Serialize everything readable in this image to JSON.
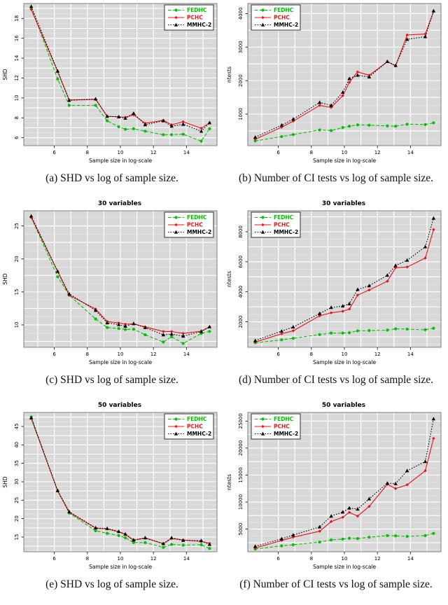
{
  "styles": {
    "panel_fill": "#d8d8d8",
    "grid_color": "#ffffff",
    "axis_border": "#666666",
    "series": {
      "FEDHC": {
        "color": "#00c000",
        "dash": "4.5,2.5",
        "marker": "circle"
      },
      "PCHC": {
        "color": "#ee1111",
        "dash": "",
        "marker": "diamond"
      },
      "MMHC-2": {
        "color": "#000000",
        "dash": "1.6,2",
        "marker": "triangle"
      }
    }
  },
  "chart_data": [
    {
      "type": "line",
      "title": "",
      "caption": "(a) SHD vs log of sample size.",
      "xlabel": "Sample size in log-scale",
      "ylabel": "SHD",
      "x": [
        4.6,
        6.2,
        6.9,
        8.5,
        9.2,
        9.9,
        10.3,
        10.8,
        11.5,
        12.6,
        13.1,
        13.8,
        14.9,
        15.4
      ],
      "xlim": [
        4.15,
        15.85
      ],
      "xticks": [
        6,
        8,
        10,
        12,
        14
      ],
      "ylim": [
        5.2,
        19.5
      ],
      "yticks": [
        6,
        8,
        10,
        12,
        14,
        16,
        18
      ],
      "legend": "topright",
      "grid": true,
      "series": [
        {
          "name": "FEDHC",
          "values": [
            19.1,
            11.9,
            9.25,
            9.25,
            7.7,
            7.1,
            6.85,
            6.9,
            6.65,
            6.3,
            6.3,
            6.35,
            5.65,
            6.9
          ]
        },
        {
          "name": "PCHC",
          "values": [
            18.9,
            12.65,
            9.8,
            9.85,
            8.15,
            8.1,
            8.05,
            8.3,
            7.45,
            7.75,
            7.3,
            7.6,
            6.95,
            7.5
          ]
        },
        {
          "name": "MMHC-2",
          "values": [
            19.2,
            12.7,
            9.75,
            9.9,
            8.15,
            8.1,
            7.95,
            8.45,
            7.3,
            7.7,
            7.15,
            7.35,
            6.65,
            7.5
          ]
        }
      ]
    },
    {
      "type": "line",
      "title": "",
      "caption": "(b) Number of CI tests vs log of sample size.",
      "xlabel": "Sample size in log-scale",
      "ylabel": "ntests",
      "x": [
        4.6,
        6.2,
        6.9,
        8.5,
        9.2,
        9.9,
        10.3,
        10.8,
        11.5,
        12.6,
        13.1,
        13.8,
        14.9,
        15.4
      ],
      "xlim": [
        4.15,
        15.85
      ],
      "xticks": [
        6,
        8,
        10,
        12,
        14
      ],
      "ylim": [
        60,
        4300
      ],
      "yticks": [
        1000,
        2000,
        3000,
        4000
      ],
      "legend": "topleft",
      "grid": true,
      "series": [
        {
          "name": "FEDHC",
          "values": [
            200,
            330,
            390,
            530,
            510,
            600,
            640,
            680,
            670,
            650,
            640,
            700,
            690,
            740
          ]
        },
        {
          "name": "PCHC",
          "values": [
            250,
            610,
            790,
            1260,
            1200,
            1550,
            1950,
            2260,
            2160,
            2560,
            2440,
            3360,
            3390,
            4060
          ]
        },
        {
          "name": "MMHC-2",
          "values": [
            310,
            670,
            850,
            1350,
            1260,
            1650,
            2060,
            2160,
            2110,
            2570,
            2450,
            3230,
            3310,
            4080
          ]
        }
      ]
    },
    {
      "type": "line",
      "title": "30 variables",
      "caption": "(c) SHD vs log of sample size.",
      "xlabel": "Sample size in log-scale",
      "ylabel": "SHD",
      "x": [
        4.6,
        6.2,
        6.9,
        8.5,
        9.2,
        9.9,
        10.3,
        10.8,
        11.5,
        12.6,
        13.1,
        13.8,
        14.9,
        15.4
      ],
      "xlim": [
        4.15,
        15.85
      ],
      "xticks": [
        6,
        8,
        10,
        12,
        14
      ],
      "ylim": [
        6.6,
        27.3
      ],
      "yticks": [
        10,
        15,
        20,
        25
      ],
      "legend": "topright",
      "grid": true,
      "series": [
        {
          "name": "FEDHC",
          "values": [
            26.3,
            17.3,
            14.5,
            10.9,
            9.6,
            9.45,
            9.3,
            9.35,
            8.5,
            7.4,
            8.2,
            7.2,
            8.7,
            9.0
          ]
        },
        {
          "name": "PCHC",
          "values": [
            26.3,
            18.1,
            14.5,
            12.4,
            10.5,
            10.3,
            10.1,
            10.15,
            9.7,
            9.0,
            9.0,
            8.7,
            9.05,
            9.7
          ]
        },
        {
          "name": "MMHC-2",
          "values": [
            26.5,
            18.1,
            14.7,
            12.2,
            10.3,
            10.05,
            9.8,
            10.2,
            9.6,
            8.5,
            8.6,
            8.3,
            9.0,
            9.7
          ]
        }
      ]
    },
    {
      "type": "line",
      "title": "30 variables",
      "caption": "(d) Number of CI tests vs log of sample size.",
      "xlabel": "Sample size in log-scale",
      "ylabel": "ntests",
      "x": [
        4.6,
        6.2,
        6.9,
        8.5,
        9.2,
        9.9,
        10.3,
        10.8,
        11.5,
        12.6,
        13.1,
        13.8,
        14.9,
        15.4
      ],
      "xlim": [
        4.15,
        15.85
      ],
      "xticks": [
        6,
        8,
        10,
        12,
        14
      ],
      "ylim": [
        300,
        9400
      ],
      "yticks": [
        2000,
        4000,
        6000,
        8000
      ],
      "legend": "topleft",
      "grid": true,
      "series": [
        {
          "name": "FEDHC",
          "values": [
            600,
            800,
            900,
            1150,
            1250,
            1250,
            1270,
            1400,
            1420,
            1450,
            1530,
            1510,
            1470,
            1570
          ]
        },
        {
          "name": "PCHC",
          "values": [
            650,
            1200,
            1400,
            2400,
            2600,
            2700,
            2850,
            3780,
            4120,
            4700,
            5600,
            5650,
            6250,
            8150
          ]
        },
        {
          "name": "MMHC-2",
          "values": [
            750,
            1380,
            1650,
            2550,
            2950,
            3050,
            3200,
            4150,
            4400,
            5100,
            5750,
            6100,
            7000,
            8900
          ]
        }
      ]
    },
    {
      "type": "line",
      "title": "50 variables",
      "caption": "(e) SHD vs log of sample size.",
      "xlabel": "Sample size in log-scale",
      "ylabel": "SHD",
      "x": [
        4.6,
        6.2,
        6.9,
        8.5,
        9.2,
        9.9,
        10.3,
        10.8,
        11.5,
        12.6,
        13.1,
        13.8,
        14.9,
        15.4
      ],
      "xlim": [
        4.15,
        15.85
      ],
      "xticks": [
        6,
        8,
        10,
        12,
        14
      ],
      "ylim": [
        11.0,
        48.8
      ],
      "yticks": [
        15,
        20,
        25,
        30,
        35,
        40,
        45
      ],
      "legend": "topright",
      "grid": true,
      "series": [
        {
          "name": "FEDHC",
          "values": [
            47.6,
            27.5,
            21.5,
            16.7,
            16.0,
            15.4,
            14.8,
            13.5,
            13.5,
            12.2,
            13.0,
            12.8,
            12.9,
            11.9
          ]
        },
        {
          "name": "PCHC",
          "values": [
            47.2,
            27.5,
            21.7,
            17.4,
            17.2,
            16.4,
            15.7,
            14.1,
            14.7,
            13.2,
            14.6,
            14.2,
            13.8,
            13.3
          ]
        },
        {
          "name": "MMHC-2",
          "values": [
            47.3,
            27.6,
            21.9,
            17.5,
            17.3,
            16.5,
            15.8,
            14.2,
            14.8,
            13.2,
            14.8,
            14.1,
            14.0,
            13.0
          ]
        }
      ]
    },
    {
      "type": "line",
      "title": "50 variables",
      "caption": "(f) Number of CI tests vs log of sample size.",
      "xlabel": "Sample size in log-scale",
      "ylabel": "ntests",
      "x": [
        4.6,
        6.2,
        6.9,
        8.5,
        9.2,
        9.9,
        10.3,
        10.8,
        11.5,
        12.6,
        13.1,
        13.8,
        14.9,
        15.4
      ],
      "xlim": [
        4.15,
        15.85
      ],
      "xticks": [
        6,
        8,
        10,
        12,
        14
      ],
      "ylim": [
        800,
        26600
      ],
      "yticks": [
        5000,
        10000,
        15000,
        20000,
        25000
      ],
      "legend": "topleft",
      "grid": true,
      "series": [
        {
          "name": "FEDHC",
          "values": [
            1300,
            1900,
            2100,
            2600,
            3000,
            3150,
            3300,
            3250,
            3500,
            3800,
            3750,
            3650,
            3800,
            4200
          ]
        },
        {
          "name": "PCHC",
          "values": [
            1500,
            2900,
            3500,
            4600,
            6400,
            7200,
            8100,
            7400,
            9200,
            13300,
            12500,
            13200,
            15800,
            21800
          ]
        },
        {
          "name": "MMHC-2",
          "values": [
            1800,
            3200,
            3900,
            5400,
            7400,
            8150,
            8900,
            8700,
            10600,
            13500,
            13400,
            15800,
            17500,
            25400
          ]
        }
      ]
    }
  ]
}
